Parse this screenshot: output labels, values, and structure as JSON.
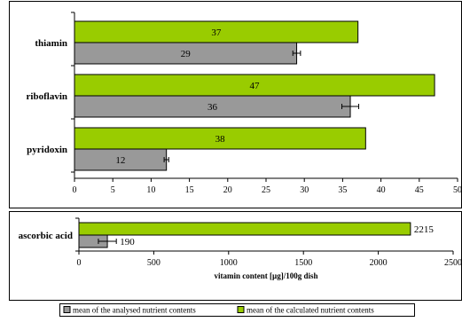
{
  "colors": {
    "analysed": "#999999",
    "calculated": "#99cc00",
    "border": "#000000"
  },
  "legend": [
    {
      "key": "analysed",
      "label": "mean of the analysed nutrient contents"
    },
    {
      "key": "calculated",
      "label": "mean of the calculated nutrient contents"
    }
  ],
  "chart_data": [
    {
      "type": "bar",
      "orientation": "horizontal",
      "categories": [
        "thiamin",
        "riboflavin",
        "pyridoxin"
      ],
      "series": [
        {
          "name": "mean of the analysed nutrient contents",
          "key": "analysed",
          "values": [
            29,
            36,
            12
          ],
          "error": [
            0.5,
            1.1,
            0.3
          ]
        },
        {
          "name": "mean of the calculated nutrient contents",
          "key": "calculated",
          "values": [
            37,
            47,
            38
          ]
        }
      ],
      "data_labels": {
        "analysed": [
          "29",
          "36",
          "12"
        ],
        "calculated": [
          "37",
          "47",
          "38"
        ]
      },
      "xlim": [
        0,
        50
      ],
      "xticks": [
        "0",
        "5",
        "10",
        "15",
        "20",
        "25",
        "30",
        "35",
        "40",
        "45",
        "50"
      ],
      "xlabel": "",
      "grid": false
    },
    {
      "type": "bar",
      "orientation": "horizontal",
      "categories": [
        "ascorbic acid"
      ],
      "series": [
        {
          "name": "mean of the analysed nutrient contents",
          "key": "analysed",
          "values": [
            190
          ],
          "error": [
            60
          ]
        },
        {
          "name": "mean of the calculated nutrient contents",
          "key": "calculated",
          "values": [
            2215
          ]
        }
      ],
      "data_labels": {
        "analysed": [
          "190"
        ],
        "calculated": [
          "2215"
        ]
      },
      "xlim": [
        0,
        2500
      ],
      "xticks": [
        "0",
        "500",
        "1000",
        "1500",
        "2000",
        "2500"
      ],
      "xlabel": "vitamin content [µg]/100g dish",
      "grid": false
    }
  ]
}
